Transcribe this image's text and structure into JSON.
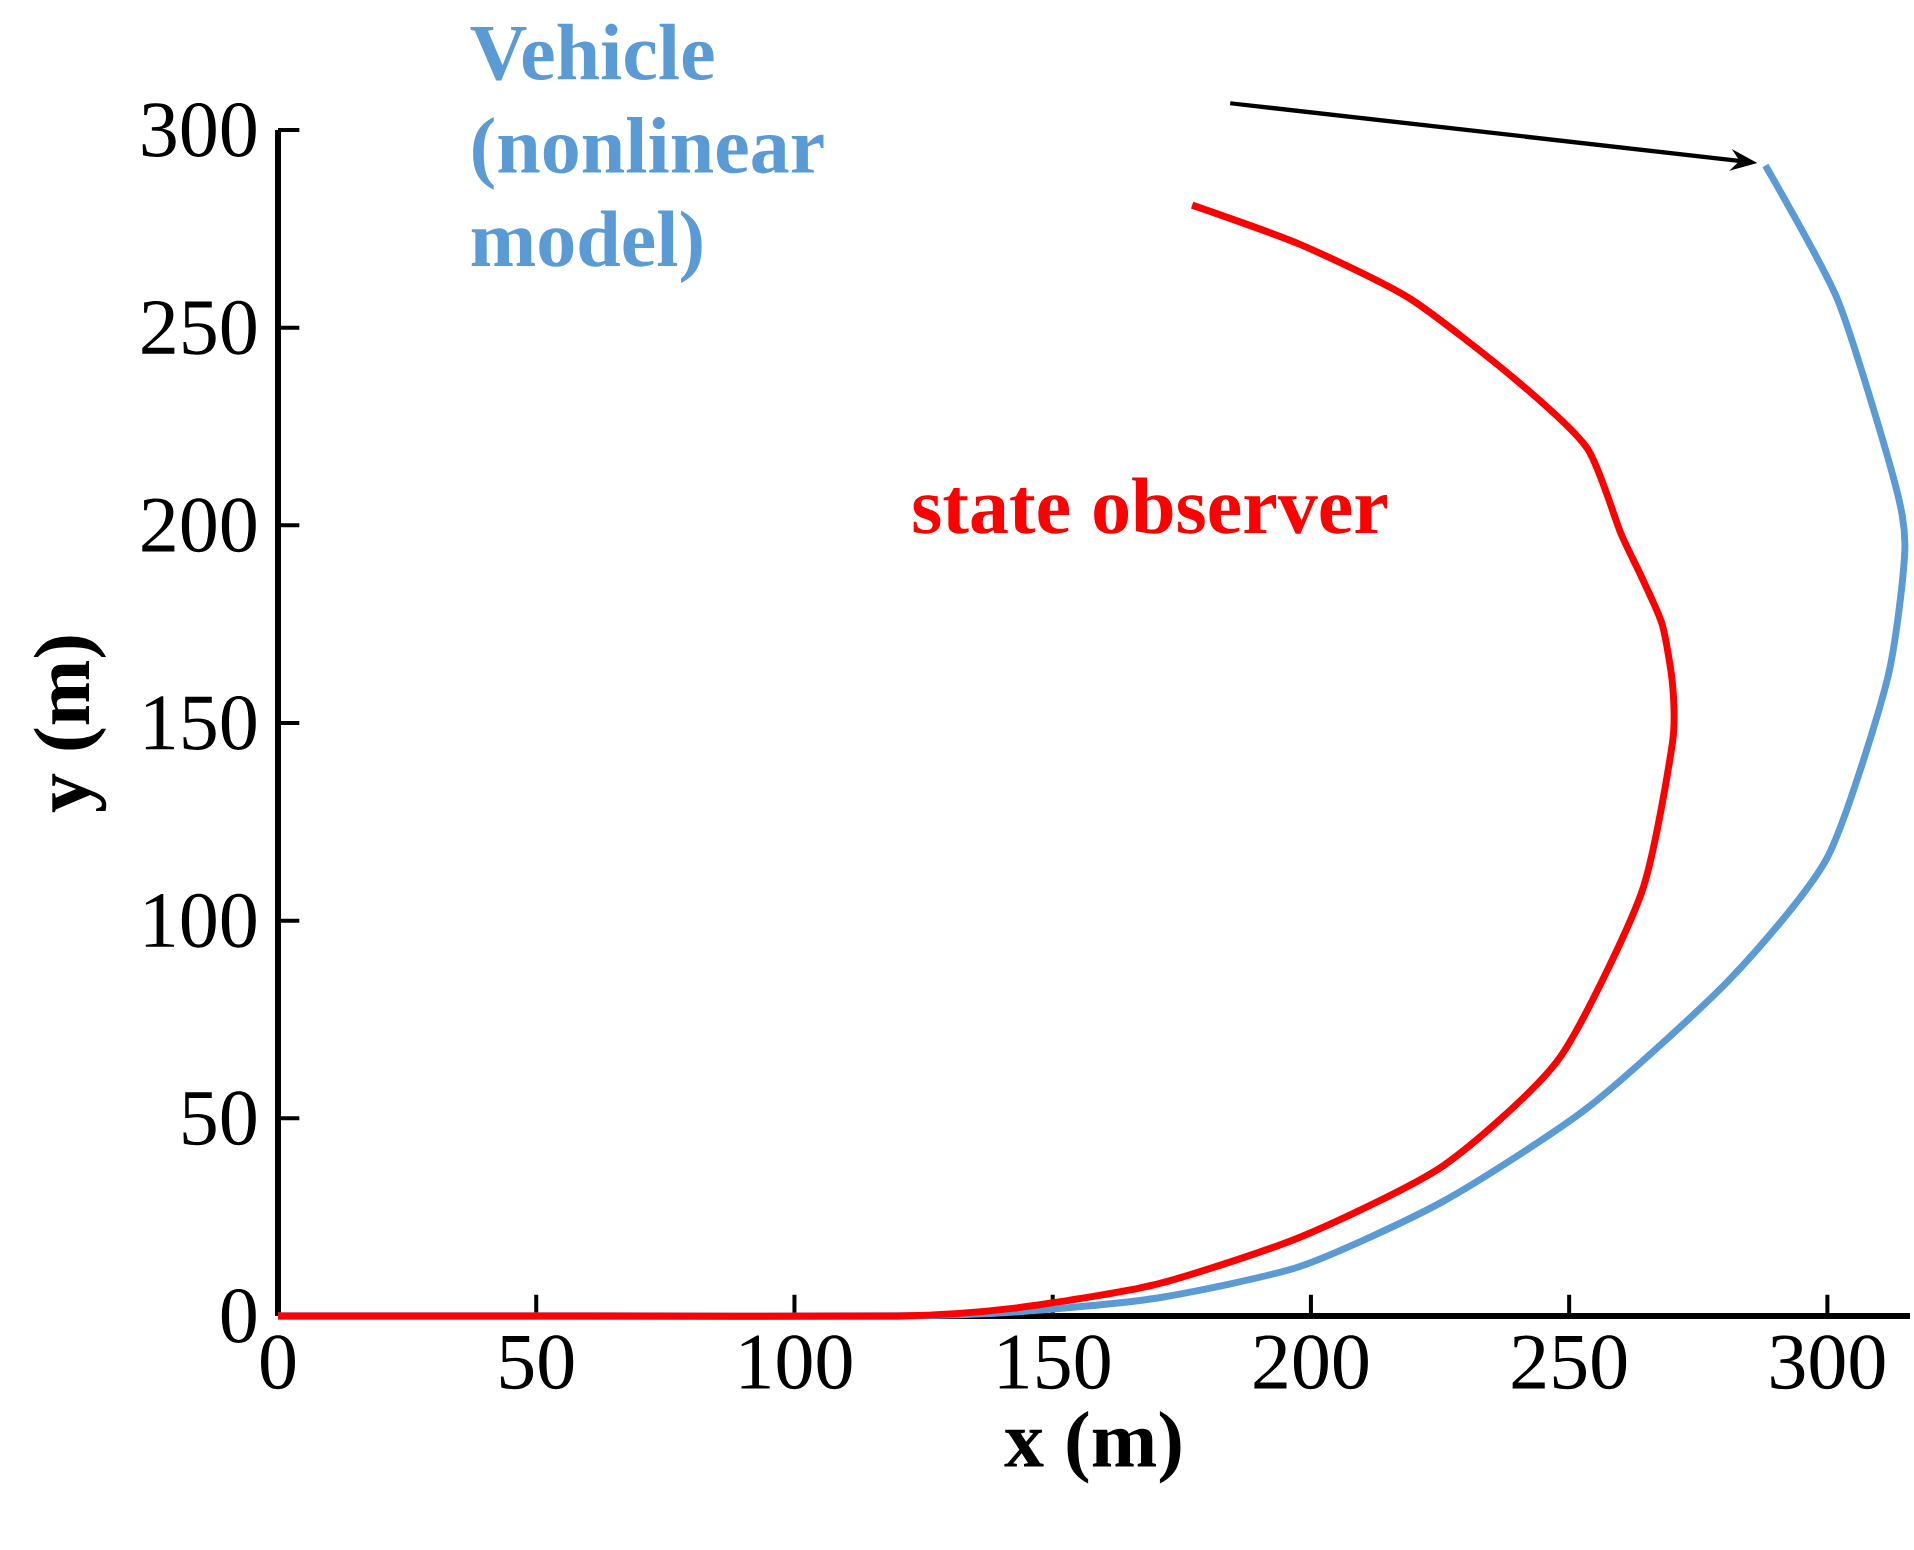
{
  "chart_data": {
    "type": "line",
    "xlabel": "x (m)",
    "ylabel": "y (m)",
    "xlim": [
      0,
      316
    ],
    "ylim": [
      0,
      300
    ],
    "xticks": [
      0,
      50,
      100,
      150,
      200,
      250,
      300
    ],
    "yticks": [
      0,
      50,
      100,
      150,
      200,
      250,
      300
    ],
    "series": [
      {
        "name": "Vehicle (nonlinear model)",
        "color": "#5b9bd5",
        "x": [
          0,
          60,
          120,
          142.6,
          170,
          198,
          225.6,
          253.5,
          281,
          300,
          311.6,
          315,
          312.8,
          302,
          288
        ],
        "values": [
          0,
          0,
          0,
          1,
          4.5,
          12.6,
          29,
          52.6,
          85,
          116,
          161,
          194,
          212,
          257,
          291
        ]
      },
      {
        "name": "state observer",
        "color": "#ff0000",
        "x": [
          0,
          60,
          120,
          142.6,
          170,
          198,
          225.6,
          248,
          264,
          270,
          270,
          268,
          264,
          260,
          253.5,
          239.5,
          219,
          198,
          177
        ],
        "values": [
          0,
          0,
          0,
          2,
          8,
          20,
          38,
          65,
          107,
          145,
          160,
          175,
          187,
          198,
          219.5,
          237,
          257.5,
          271,
          281
        ]
      }
    ]
  }
}
